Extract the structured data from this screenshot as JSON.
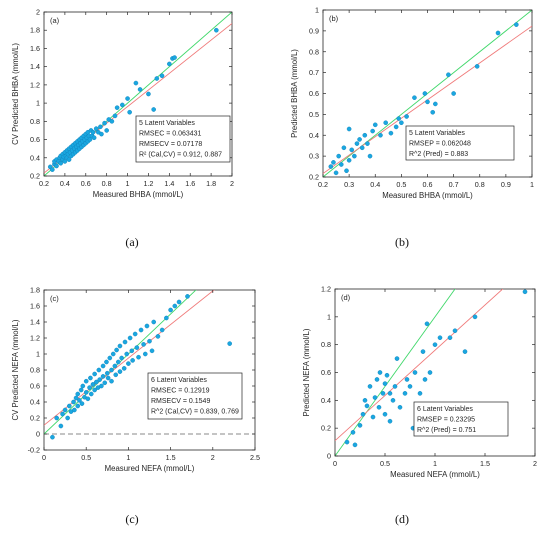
{
  "chart_data": [
    {
      "type": "scatter",
      "panel_tag": "(a)",
      "caption": "(a)",
      "xlabel": "Measured BHBA (mmol/L)",
      "ylabel": "CV Predicted  BHBA (mmol/L)",
      "xlim": [
        0.2,
        2
      ],
      "ylim": [
        0.2,
        2
      ],
      "xticks": [
        0.2,
        0.4,
        0.6,
        0.8,
        1,
        1.2,
        1.4,
        1.6,
        1.8,
        2
      ],
      "yticks": [
        0.2,
        0.4,
        0.6,
        0.8,
        1,
        1.2,
        1.4,
        1.6,
        1.8,
        2
      ],
      "xtick_labels": [
        "0.2",
        "0.4",
        "0.6",
        "0.8",
        "1",
        "1.2",
        "1.4",
        "1.6",
        "1.8",
        "2"
      ],
      "ytick_labels": [
        "0.2",
        "0.4",
        "0.6",
        "0.8",
        "1",
        "1.2",
        "1.4",
        "1.6",
        "1.8",
        "2"
      ],
      "green_line": {
        "slope": 1,
        "intercept": 0
      },
      "red_line": {
        "slope": 0.912,
        "intercept": 0.05
      },
      "dashed_zero": false,
      "legend_box": {
        "placement": "lower-right",
        "lines": [
          "5 Latent Variables",
          "RMSEC = 0.063431",
          "RMSECV = 0.07178",
          "R² (Cal,CV) = 0.912, 0.887"
        ]
      },
      "points": [
        [
          0.26,
          0.3
        ],
        [
          0.28,
          0.27
        ],
        [
          0.3,
          0.33
        ],
        [
          0.3,
          0.36
        ],
        [
          0.32,
          0.38
        ],
        [
          0.32,
          0.31
        ],
        [
          0.34,
          0.36
        ],
        [
          0.35,
          0.4
        ],
        [
          0.36,
          0.42
        ],
        [
          0.36,
          0.34
        ],
        [
          0.38,
          0.38
        ],
        [
          0.38,
          0.44
        ],
        [
          0.39,
          0.41
        ],
        [
          0.4,
          0.36
        ],
        [
          0.4,
          0.46
        ],
        [
          0.41,
          0.42
        ],
        [
          0.42,
          0.4
        ],
        [
          0.42,
          0.48
        ],
        [
          0.43,
          0.44
        ],
        [
          0.44,
          0.38
        ],
        [
          0.44,
          0.5
        ],
        [
          0.45,
          0.46
        ],
        [
          0.46,
          0.42
        ],
        [
          0.46,
          0.52
        ],
        [
          0.47,
          0.48
        ],
        [
          0.48,
          0.44
        ],
        [
          0.48,
          0.54
        ],
        [
          0.49,
          0.5
        ],
        [
          0.5,
          0.46
        ],
        [
          0.5,
          0.56
        ],
        [
          0.51,
          0.52
        ],
        [
          0.52,
          0.48
        ],
        [
          0.52,
          0.58
        ],
        [
          0.53,
          0.54
        ],
        [
          0.54,
          0.5
        ],
        [
          0.54,
          0.6
        ],
        [
          0.55,
          0.56
        ],
        [
          0.56,
          0.52
        ],
        [
          0.56,
          0.62
        ],
        [
          0.57,
          0.58
        ],
        [
          0.58,
          0.54
        ],
        [
          0.58,
          0.64
        ],
        [
          0.59,
          0.6
        ],
        [
          0.6,
          0.56
        ],
        [
          0.6,
          0.66
        ],
        [
          0.61,
          0.62
        ],
        [
          0.62,
          0.58
        ],
        [
          0.62,
          0.68
        ],
        [
          0.63,
          0.64
        ],
        [
          0.64,
          0.6
        ],
        [
          0.65,
          0.7
        ],
        [
          0.66,
          0.64
        ],
        [
          0.67,
          0.68
        ],
        [
          0.68,
          0.62
        ],
        [
          0.7,
          0.72
        ],
        [
          0.72,
          0.68
        ],
        [
          0.74,
          0.74
        ],
        [
          0.75,
          0.66
        ],
        [
          0.78,
          0.78
        ],
        [
          0.8,
          0.7
        ],
        [
          0.82,
          0.82
        ],
        [
          0.85,
          0.8
        ],
        [
          0.88,
          0.86
        ],
        [
          0.9,
          0.95
        ],
        [
          0.95,
          0.98
        ],
        [
          1.0,
          1.05
        ],
        [
          1.02,
          0.9
        ],
        [
          1.08,
          1.22
        ],
        [
          1.12,
          1.15
        ],
        [
          1.2,
          1.1
        ],
        [
          1.25,
          0.93
        ],
        [
          1.28,
          1.27
        ],
        [
          1.33,
          1.3
        ],
        [
          1.4,
          1.43
        ],
        [
          1.43,
          1.49
        ],
        [
          1.45,
          1.5
        ],
        [
          1.85,
          1.8
        ]
      ]
    },
    {
      "type": "scatter",
      "panel_tag": "(b)",
      "caption": "(b)",
      "xlabel": "Measured BHBA (mmol/L)",
      "ylabel": "Predicted  BHBA (mmol/L)",
      "xlim": [
        0.2,
        1
      ],
      "ylim": [
        0.2,
        1
      ],
      "xticks": [
        0.2,
        0.3,
        0.4,
        0.5,
        0.6,
        0.7,
        0.8,
        0.9,
        1
      ],
      "yticks": [
        0.2,
        0.3,
        0.4,
        0.5,
        0.6,
        0.7,
        0.8,
        0.9,
        1
      ],
      "xtick_labels": [
        "0.2",
        "0.3",
        "0.4",
        "0.5",
        "0.6",
        "0.7",
        "0.8",
        "0.9",
        "1"
      ],
      "ytick_labels": [
        "0.2",
        "0.3",
        "0.4",
        "0.5",
        "0.6",
        "0.7",
        "0.8",
        "0.9",
        "1"
      ],
      "green_line": {
        "slope": 1,
        "intercept": 0
      },
      "red_line": {
        "slope": 0.883,
        "intercept": 0.04
      },
      "dashed_zero": false,
      "legend_box": {
        "placement": "lower-right",
        "lines": [
          "5 Latent Variables",
          "RMSEP = 0.062048",
          "R^2 (Pred) = 0.883"
        ]
      },
      "points": [
        [
          0.23,
          0.25
        ],
        [
          0.24,
          0.27
        ],
        [
          0.25,
          0.22
        ],
        [
          0.26,
          0.3
        ],
        [
          0.27,
          0.26
        ],
        [
          0.28,
          0.34
        ],
        [
          0.29,
          0.23
        ],
        [
          0.3,
          0.28
        ],
        [
          0.3,
          0.43
        ],
        [
          0.31,
          0.33
        ],
        [
          0.32,
          0.3
        ],
        [
          0.33,
          0.36
        ],
        [
          0.34,
          0.38
        ],
        [
          0.35,
          0.34
        ],
        [
          0.36,
          0.4
        ],
        [
          0.37,
          0.36
        ],
        [
          0.38,
          0.3
        ],
        [
          0.39,
          0.42
        ],
        [
          0.4,
          0.45
        ],
        [
          0.42,
          0.4
        ],
        [
          0.44,
          0.46
        ],
        [
          0.46,
          0.41
        ],
        [
          0.48,
          0.44
        ],
        [
          0.49,
          0.48
        ],
        [
          0.5,
          0.46
        ],
        [
          0.52,
          0.49
        ],
        [
          0.55,
          0.58
        ],
        [
          0.57,
          0.33
        ],
        [
          0.59,
          0.6
        ],
        [
          0.6,
          0.56
        ],
        [
          0.62,
          0.51
        ],
        [
          0.63,
          0.55
        ],
        [
          0.68,
          0.69
        ],
        [
          0.7,
          0.6
        ],
        [
          0.79,
          0.73
        ],
        [
          0.87,
          0.89
        ],
        [
          0.94,
          0.93
        ]
      ]
    },
    {
      "type": "scatter",
      "panel_tag": "(c)",
      "caption": "(c)",
      "xlabel": "Measured NEFA (mmol/L)",
      "ylabel": "CV Predicted  NEFA (mmol/L)",
      "xlim": [
        0,
        2.5
      ],
      "ylim": [
        -0.2,
        1.8
      ],
      "xticks": [
        0,
        0.5,
        1,
        1.5,
        2,
        2.5
      ],
      "yticks": [
        -0.2,
        0,
        0.2,
        0.4,
        0.6,
        0.8,
        1,
        1.2,
        1.4,
        1.6,
        1.8
      ],
      "xtick_labels": [
        "0",
        "0.5",
        "1",
        "1.5",
        "2",
        "2.5"
      ],
      "ytick_labels": [
        "-0.2",
        "0",
        "0.2",
        "0.4",
        "0.6",
        "0.8",
        "1",
        "1.2",
        "1.4",
        "1.6",
        "1.8"
      ],
      "green_line": {
        "slope": 1,
        "intercept": 0
      },
      "red_line": {
        "slope": 0.839,
        "intercept": 0.11
      },
      "dashed_zero": true,
      "legend_box": {
        "placement": "lower-right",
        "lines": [
          "6 Latent Variables",
          "RMSEC = 0.12919",
          "RMSECV = 0.1549",
          "R^2 (Cal,CV) = 0.839, 0.769"
        ]
      },
      "points": [
        [
          0.1,
          -0.04
        ],
        [
          0.15,
          0.2
        ],
        [
          0.2,
          0.1
        ],
        [
          0.22,
          0.25
        ],
        [
          0.25,
          0.3
        ],
        [
          0.28,
          0.2
        ],
        [
          0.3,
          0.35
        ],
        [
          0.32,
          0.28
        ],
        [
          0.35,
          0.4
        ],
        [
          0.36,
          0.3
        ],
        [
          0.38,
          0.45
        ],
        [
          0.4,
          0.35
        ],
        [
          0.4,
          0.5
        ],
        [
          0.42,
          0.42
        ],
        [
          0.44,
          0.55
        ],
        [
          0.45,
          0.38
        ],
        [
          0.46,
          0.6
        ],
        [
          0.48,
          0.46
        ],
        [
          0.5,
          0.52
        ],
        [
          0.5,
          0.66
        ],
        [
          0.52,
          0.44
        ],
        [
          0.54,
          0.58
        ],
        [
          0.55,
          0.7
        ],
        [
          0.56,
          0.5
        ],
        [
          0.58,
          0.62
        ],
        [
          0.6,
          0.55
        ],
        [
          0.6,
          0.75
        ],
        [
          0.62,
          0.65
        ],
        [
          0.64,
          0.58
        ],
        [
          0.65,
          0.8
        ],
        [
          0.66,
          0.68
        ],
        [
          0.68,
          0.6
        ],
        [
          0.7,
          0.85
        ],
        [
          0.7,
          0.72
        ],
        [
          0.72,
          0.64
        ],
        [
          0.74,
          0.9
        ],
        [
          0.75,
          0.76
        ],
        [
          0.76,
          0.7
        ],
        [
          0.78,
          0.95
        ],
        [
          0.8,
          0.8
        ],
        [
          0.8,
          0.66
        ],
        [
          0.82,
          1.0
        ],
        [
          0.84,
          0.85
        ],
        [
          0.85,
          0.74
        ],
        [
          0.86,
          1.05
        ],
        [
          0.88,
          0.9
        ],
        [
          0.9,
          0.78
        ],
        [
          0.9,
          1.1
        ],
        [
          0.92,
          0.95
        ],
        [
          0.95,
          0.82
        ],
        [
          0.96,
          1.15
        ],
        [
          0.98,
          1.0
        ],
        [
          1.0,
          0.88
        ],
        [
          1.02,
          1.2
        ],
        [
          1.04,
          1.04
        ],
        [
          1.05,
          0.92
        ],
        [
          1.08,
          1.25
        ],
        [
          1.1,
          1.08
        ],
        [
          1.12,
          0.96
        ],
        [
          1.15,
          1.3
        ],
        [
          1.18,
          1.12
        ],
        [
          1.2,
          1.0
        ],
        [
          1.22,
          1.35
        ],
        [
          1.25,
          1.16
        ],
        [
          1.28,
          1.04
        ],
        [
          1.3,
          1.4
        ],
        [
          1.35,
          1.22
        ],
        [
          1.4,
          1.3
        ],
        [
          1.45,
          1.45
        ],
        [
          1.5,
          1.55
        ],
        [
          1.55,
          1.6
        ],
        [
          1.6,
          1.65
        ],
        [
          1.7,
          1.72
        ],
        [
          2.2,
          1.13
        ]
      ]
    },
    {
      "type": "scatter",
      "panel_tag": "(d)",
      "caption": "(d)",
      "xlabel": "Measured NEFA (mmol/L)",
      "ylabel": "Predicted  NEFA (mmol/L)",
      "xlim": [
        0,
        2
      ],
      "ylim": [
        0,
        1.2
      ],
      "xticks": [
        0,
        0.5,
        1,
        1.5,
        2
      ],
      "yticks": [
        0,
        0.2,
        0.4,
        0.6,
        0.8,
        1,
        1.2
      ],
      "xtick_labels": [
        "0",
        "0.5",
        "1",
        "1.5",
        "2"
      ],
      "ytick_labels": [
        "0",
        "0.2",
        "0.4",
        "0.6",
        "0.8",
        "1",
        "1.2"
      ],
      "green_line": {
        "slope": 1,
        "intercept": 0
      },
      "red_line": {
        "slope": 0.65,
        "intercept": 0.11
      },
      "dashed_zero": false,
      "legend_box": {
        "placement": "lower-right",
        "lines": [
          "6 Latent Variables",
          "RMSEP = 0.23295",
          "R^2 (Pred) = 0.751"
        ]
      },
      "points": [
        [
          0.12,
          0.1
        ],
        [
          0.18,
          0.17
        ],
        [
          0.2,
          0.08
        ],
        [
          0.25,
          0.22
        ],
        [
          0.28,
          0.3
        ],
        [
          0.3,
          0.4
        ],
        [
          0.32,
          0.36
        ],
        [
          0.35,
          0.5
        ],
        [
          0.38,
          0.28
        ],
        [
          0.4,
          0.42
        ],
        [
          0.42,
          0.55
        ],
        [
          0.44,
          0.35
        ],
        [
          0.45,
          0.6
        ],
        [
          0.48,
          0.45
        ],
        [
          0.5,
          0.52
        ],
        [
          0.5,
          0.3
        ],
        [
          0.52,
          0.58
        ],
        [
          0.55,
          0.25
        ],
        [
          0.55,
          0.45
        ],
        [
          0.58,
          0.4
        ],
        [
          0.6,
          0.5
        ],
        [
          0.62,
          0.7
        ],
        [
          0.65,
          0.35
        ],
        [
          0.7,
          0.45
        ],
        [
          0.72,
          0.55
        ],
        [
          0.75,
          0.5
        ],
        [
          0.78,
          0.2
        ],
        [
          0.8,
          0.6
        ],
        [
          0.85,
          0.45
        ],
        [
          0.88,
          0.75
        ],
        [
          0.9,
          0.55
        ],
        [
          0.92,
          0.95
        ],
        [
          0.95,
          0.6
        ],
        [
          1.0,
          0.8
        ],
        [
          1.05,
          0.85
        ],
        [
          1.15,
          0.85
        ],
        [
          1.2,
          0.9
        ],
        [
          1.3,
          0.75
        ],
        [
          1.4,
          1.0
        ],
        [
          1.9,
          1.18
        ]
      ]
    }
  ]
}
